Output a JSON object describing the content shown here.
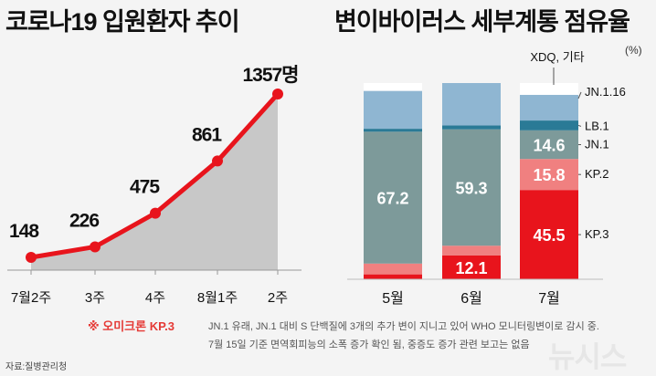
{
  "left_title": "코로나19 입원환자 추이",
  "right_title": "변이바이러스 세부계통 점유율",
  "unit_label": "(%)",
  "note_marker": "※ 오미크론 KP.3",
  "note_line1": "JN.1 유래, JN.1 대비 S 단백질에 3개의 추가 변이 지니고 있어 WHO 모니터링변이로 감시 중.",
  "note_line2": "7월 15일 기준 면역회피능의  소폭 증가 확인 됨, 중증도 증가 관련 보고는 없음",
  "source": "자료:질병관리청",
  "watermark": "뉴시스",
  "chart_data": [
    {
      "type": "area",
      "title": "코로나19 입원환자 추이",
      "categories": [
        "7월2주",
        "3주",
        "4주",
        "8월1주",
        "2주"
      ],
      "values": [
        148,
        226,
        475,
        861,
        1357
      ],
      "value_labels": [
        "148",
        "226",
        "475",
        "861",
        "1357명"
      ],
      "colors": {
        "line": "#e8141c",
        "area": "#c8c8c8",
        "marker": "#e8141c"
      }
    },
    {
      "type": "bar",
      "stacked": true,
      "title": "변이바이러스 세부계통 점유율",
      "unit": "(%)",
      "categories": [
        "5월",
        "6월",
        "7월"
      ],
      "series": [
        {
          "name": "KP.3",
          "color": "#e8141c",
          "values": [
            2.5,
            12.1,
            45.5
          ]
        },
        {
          "name": "KP.2",
          "color": "#f08080",
          "values": [
            5.5,
            5.0,
            15.8
          ]
        },
        {
          "name": "JN.1",
          "color": "#7d9a9a",
          "values": [
            67.2,
            59.3,
            14.6
          ]
        },
        {
          "name": "LB.1",
          "color": "#2a7a96",
          "values": [
            1.5,
            2.0,
            5.0
          ]
        },
        {
          "name": "JN.1.16",
          "color": "#8fb6d2",
          "values": [
            19.3,
            21.6,
            13.1
          ]
        },
        {
          "name": "XDQ, 기타",
          "color": "#ffffff",
          "values": [
            4.0,
            0.0,
            6.0
          ]
        }
      ],
      "data_labels": [
        {
          "category": "5월",
          "series": "JN.1",
          "text": "67.2"
        },
        {
          "category": "6월",
          "series": "KP.3",
          "text": "12.1"
        },
        {
          "category": "6월",
          "series": "JN.1",
          "text": "59.3"
        },
        {
          "category": "7월",
          "series": "KP.3",
          "text": "45.5"
        },
        {
          "category": "7월",
          "series": "KP.2",
          "text": "15.8"
        },
        {
          "category": "7월",
          "series": "JN.1",
          "text": "14.6"
        }
      ],
      "ylim": [
        0,
        100
      ]
    }
  ]
}
